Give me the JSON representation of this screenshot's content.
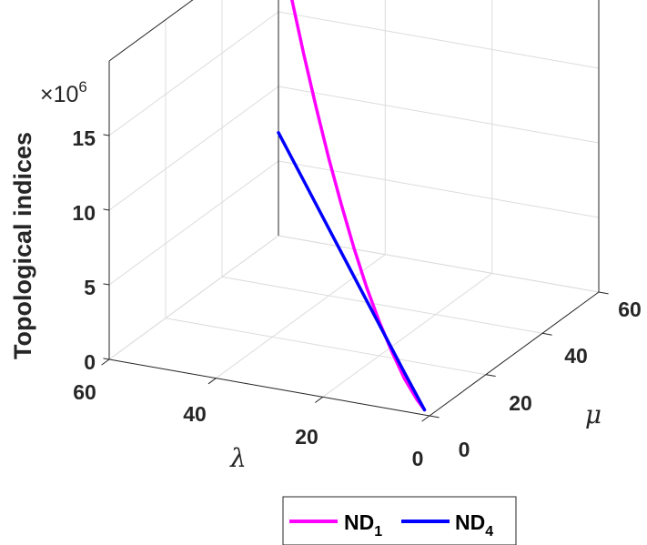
{
  "chart_data": {
    "type": "line3d",
    "x_symbol": "λ",
    "y_symbol": "μ",
    "z_label": "Topological indices",
    "z_multiplier": {
      "base": "×10",
      "exponent": "6"
    },
    "x_ticks": [
      "0",
      "20",
      "40",
      "60"
    ],
    "y_ticks": [
      "0",
      "20",
      "40",
      "60"
    ],
    "z_ticks": [
      "0",
      "5",
      "10",
      "15"
    ],
    "xlim": [
      0,
      60
    ],
    "ylim": [
      0,
      60
    ],
    "zlim": [
      0,
      20
    ],
    "grid": true,
    "legend_location": "bottom-outside",
    "series": [
      {
        "base": "ND",
        "sub": "1",
        "color": "#FF00FF",
        "points": [
          [
            2,
            2,
            0.002
          ],
          [
            5,
            5,
            0.08
          ],
          [
            10,
            10,
            0.5
          ],
          [
            15,
            15,
            1.3
          ],
          [
            20,
            20,
            2.3
          ],
          [
            25,
            25,
            3.6
          ],
          [
            30,
            30,
            5.2
          ],
          [
            35,
            35,
            7.1
          ],
          [
            40,
            40,
            9.2
          ],
          [
            45,
            45,
            11.6
          ],
          [
            50,
            50,
            14.2
          ],
          [
            55,
            55,
            17.1
          ],
          [
            60,
            60,
            20.2
          ]
        ]
      },
      {
        "base": "ND",
        "sub": "4",
        "color": "#0000FF",
        "points": [
          [
            2,
            2,
            0.002
          ],
          [
            10,
            10,
            0.9
          ],
          [
            20,
            20,
            2.1
          ],
          [
            30,
            30,
            3.3
          ],
          [
            40,
            40,
            4.5
          ],
          [
            50,
            50,
            5.7
          ],
          [
            60,
            60,
            6.9
          ]
        ]
      }
    ]
  }
}
